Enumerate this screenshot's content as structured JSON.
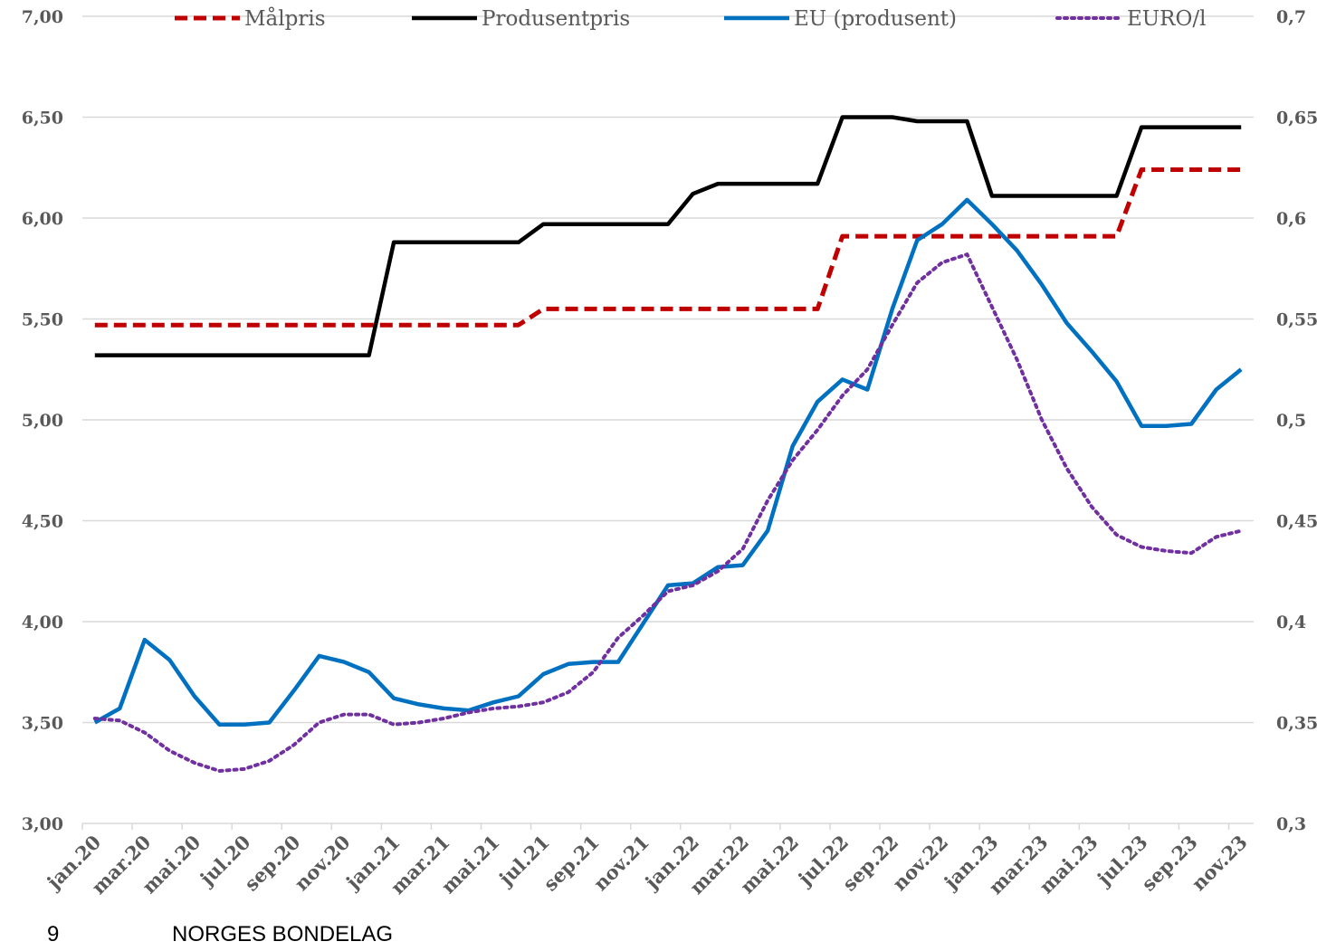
{
  "chart_data": {
    "type": "line",
    "categories": [
      "jan.20",
      null,
      "mar.20",
      null,
      "mai.20",
      null,
      "jul.20",
      null,
      "sep.20",
      null,
      "nov.20",
      null,
      "jan.21",
      null,
      "mar.21",
      null,
      "mai.21",
      null,
      "jul.21",
      null,
      "sep.21",
      null,
      "nov.21",
      null,
      "jan.22",
      null,
      "mar.22",
      null,
      "mai.22",
      null,
      "jul.22",
      null,
      "sep.22",
      null,
      "nov.22",
      null,
      "jan.23",
      null,
      "mar.23",
      null,
      "mai.23",
      null,
      "jul.23",
      null,
      "sep.23",
      null,
      "nov.23"
    ],
    "series": [
      {
        "name": "Målpris",
        "color": "#c00000",
        "dash": "dashed",
        "values": [
          5.47,
          5.47,
          5.47,
          5.47,
          5.47,
          5.47,
          5.47,
          5.47,
          5.47,
          5.47,
          5.47,
          5.47,
          5.47,
          5.47,
          5.47,
          5.47,
          5.47,
          5.47,
          5.55,
          5.55,
          5.55,
          5.55,
          5.55,
          5.55,
          5.55,
          5.55,
          5.55,
          5.55,
          5.55,
          5.55,
          5.91,
          5.91,
          5.91,
          5.91,
          5.91,
          5.91,
          5.91,
          5.91,
          5.91,
          5.91,
          5.91,
          5.91,
          6.24,
          6.24,
          6.24,
          6.24,
          6.24
        ]
      },
      {
        "name": "Produsentpris",
        "color": "#000000",
        "dash": "solid",
        "values": [
          5.32,
          5.32,
          5.32,
          5.32,
          5.32,
          5.32,
          5.32,
          5.32,
          5.32,
          5.32,
          5.32,
          5.32,
          5.88,
          5.88,
          5.88,
          5.88,
          5.88,
          5.88,
          5.97,
          5.97,
          5.97,
          5.97,
          5.97,
          5.97,
          6.12,
          6.17,
          6.17,
          6.17,
          6.17,
          6.17,
          6.5,
          6.5,
          6.5,
          6.48,
          6.48,
          6.48,
          6.11,
          6.11,
          6.11,
          6.11,
          6.11,
          6.11,
          6.45,
          6.45,
          6.45,
          6.45,
          6.45
        ]
      },
      {
        "name": "EU (produsent)",
        "color": "#0070c0",
        "dash": "solid",
        "values": [
          3.5,
          3.57,
          3.91,
          3.81,
          3.63,
          3.49,
          3.49,
          3.5,
          3.66,
          3.83,
          3.8,
          3.75,
          3.62,
          3.59,
          3.57,
          3.56,
          3.6,
          3.63,
          3.74,
          3.79,
          3.8,
          3.8,
          3.99,
          4.18,
          4.19,
          4.27,
          4.28,
          4.45,
          4.87,
          5.09,
          5.2,
          5.15,
          5.55,
          5.89,
          5.97,
          6.09,
          5.97,
          5.84,
          5.67,
          5.48,
          5.34,
          5.19,
          4.97,
          4.97,
          4.98,
          5.15,
          5.25
        ]
      },
      {
        "name": "EURO/l",
        "color": "#7030a0",
        "dash": "dotted",
        "axis": "y2",
        "values": [
          0.352,
          0.351,
          0.345,
          0.336,
          0.33,
          0.326,
          0.327,
          0.331,
          0.339,
          0.35,
          0.354,
          0.354,
          0.349,
          0.35,
          0.352,
          0.355,
          0.357,
          0.358,
          0.36,
          0.365,
          0.375,
          0.392,
          0.403,
          0.415,
          0.418,
          0.425,
          0.436,
          0.46,
          0.48,
          0.495,
          0.512,
          0.525,
          0.547,
          0.568,
          0.578,
          0.582,
          0.556,
          0.53,
          0.5,
          0.476,
          0.457,
          0.443,
          0.437,
          0.435,
          0.434,
          0.442,
          0.445
        ]
      }
    ],
    "ylim": [
      3,
      7
    ],
    "yticks": [
      {
        "value": 3,
        "label": "3,00"
      },
      {
        "value": 3.5,
        "label": "3,50"
      },
      {
        "value": 4,
        "label": "4,00"
      },
      {
        "value": 4.5,
        "label": "4,50"
      },
      {
        "value": 5,
        "label": "5,00"
      },
      {
        "value": 5.5,
        "label": "5,50"
      },
      {
        "value": 6,
        "label": "6,00"
      },
      {
        "value": 6.5,
        "label": "6,50"
      },
      {
        "value": 7,
        "label": "7,00"
      }
    ],
    "y2lim": [
      0.3,
      0.7
    ],
    "y2ticks": [
      {
        "value": 0.3,
        "label": "0,3"
      },
      {
        "value": 0.35,
        "label": "0,35"
      },
      {
        "value": 0.4,
        "label": "0,4"
      },
      {
        "value": 0.45,
        "label": "0,45"
      },
      {
        "value": 0.5,
        "label": "0,5"
      },
      {
        "value": 0.55,
        "label": "0,55"
      },
      {
        "value": 0.6,
        "label": "0,6"
      },
      {
        "value": 0.65,
        "label": "0,65"
      },
      {
        "value": 0.7,
        "label": "0,7"
      }
    ],
    "grid": true,
    "legend": "top"
  },
  "footer": {
    "page_number": "9",
    "organization": "NORGES BONDELAG"
  }
}
